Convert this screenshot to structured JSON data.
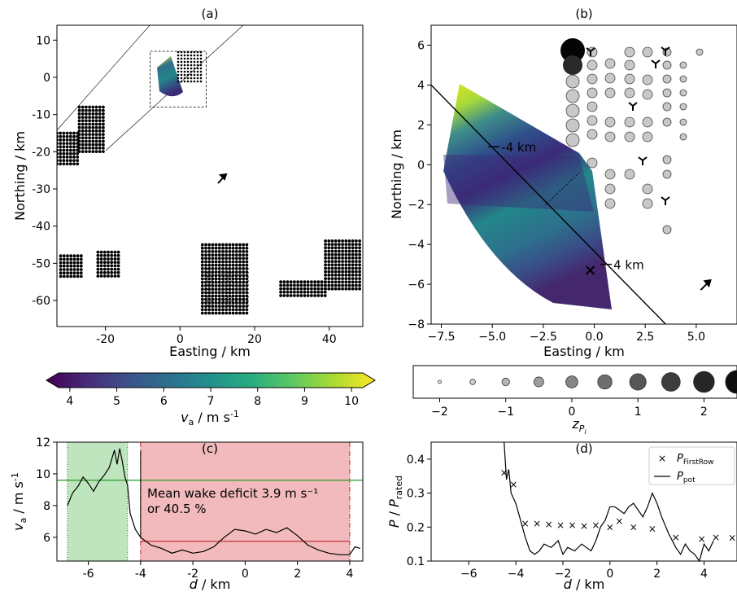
{
  "chart_data": [
    {
      "panel": "(a)",
      "type": "scatter",
      "title": "(a)",
      "xlabel": "Easting / km",
      "ylabel": "Northing / km",
      "xlim": [
        -33,
        49
      ],
      "ylim": [
        -67,
        14
      ],
      "xticks": [
        -20,
        0,
        20,
        40
      ],
      "yticks": [
        10,
        0,
        -10,
        -20,
        -30,
        -40,
        -50,
        -60
      ],
      "xtick_labels": [
        "-20",
        "0",
        "20",
        "40"
      ],
      "ytick_labels": [
        "10",
        "0",
        "-10",
        "-20",
        "-30",
        "-40",
        "-50",
        "-60"
      ],
      "wind_farms": [
        {
          "x_range": [
            -33,
            -27
          ],
          "y_range": [
            -24,
            -15
          ]
        },
        {
          "x_range": [
            -27,
            -20
          ],
          "y_range": [
            -20,
            -8
          ]
        },
        {
          "x_range": [
            -32,
            -26
          ],
          "y_range": [
            -54,
            -48
          ]
        },
        {
          "x_range": [
            -22,
            -16
          ],
          "y_range": [
            -54,
            -47
          ]
        },
        {
          "x_range": [
            6,
            18
          ],
          "y_range": [
            -64,
            -45
          ]
        },
        {
          "x_range": [
            27,
            39
          ],
          "y_range": [
            -59,
            -55
          ]
        },
        {
          "x_range": [
            39,
            49
          ],
          "y_range": [
            -57,
            -44
          ]
        }
      ],
      "zoom_box": {
        "x_range": [
          -8,
          7
        ],
        "y_range": [
          -8,
          7
        ]
      },
      "grid": false
    },
    {
      "panel": "(b)",
      "type": "heatmap",
      "title": "(b)",
      "xlabel": "Easting / km",
      "ylabel": "Northing / km",
      "xlim": [
        -8,
        7
      ],
      "ylim": [
        -8,
        7
      ],
      "xticks": [
        -7.5,
        -5,
        -2.5,
        0,
        2.5,
        5
      ],
      "yticks": [
        6,
        4,
        2,
        0,
        -2,
        -4,
        -6,
        -8
      ],
      "xtick_labels": [
        "−7.5",
        "−5.0",
        "−2.5",
        "0.0",
        "2.5",
        "5.0"
      ],
      "ytick_labels": [
        "6",
        "4",
        "2",
        "0",
        "−2",
        "−4",
        "−6",
        "−8"
      ],
      "transect": {
        "start": [
          -8,
          4
        ],
        "end": [
          3.5,
          -8
        ]
      },
      "transect_labels": [
        {
          "text": "-4 km",
          "x": -4.8,
          "y": 0.9
        },
        {
          "text": "4 km",
          "x": 0.7,
          "y": -5.0
        }
      ],
      "turbine_marker": {
        "x": -0.2,
        "y": -5.3
      },
      "wind_arrow": {
        "x": 5.5,
        "y": -6.0
      }
    },
    {
      "panel": "colorbar",
      "type": "heatmap",
      "xlabel": "v_a / m s⁻¹",
      "xlim": [
        3.5,
        10.5
      ],
      "ticks": [
        4,
        5,
        6,
        7,
        8,
        9,
        10
      ],
      "tick_labels": [
        "4",
        "5",
        "6",
        "7",
        "8",
        "9",
        "10"
      ],
      "colormap": [
        "#440154",
        "#3b528b",
        "#21918c",
        "#5ec962",
        "#fde725"
      ]
    },
    {
      "panel": "size-legend",
      "type": "scatter",
      "xlabel": "z_Pi",
      "xlim": [
        -2.4,
        2.5
      ],
      "values": [
        -2,
        -1.5,
        -1,
        -0.5,
        0,
        0.5,
        1,
        1.5,
        2,
        2.5
      ],
      "ticks": [
        -2,
        -1,
        0,
        1,
        2
      ],
      "tick_labels": [
        "−2",
        "−1",
        "0",
        "1",
        "2"
      ]
    },
    {
      "panel": "(c)",
      "type": "line",
      "title": "(c)",
      "xlabel": "d / km",
      "ylabel": "v_a / m s⁻¹",
      "xlim": [
        -7.2,
        4.5
      ],
      "ylim": [
        4.5,
        12
      ],
      "xticks": [
        -6,
        -4,
        -2,
        0,
        2,
        4
      ],
      "yticks": [
        6,
        8,
        10,
        12
      ],
      "xtick_labels": [
        "-6",
        "-4",
        "-2",
        "0",
        "2",
        "4"
      ],
      "ytick_labels": [
        "6",
        "8",
        "10",
        "12"
      ],
      "free_stream_level": 9.6,
      "wake_level": 5.75,
      "free_stream_span": [
        -6.8,
        -4.5
      ],
      "wake_span": [
        -4.0,
        4.0
      ],
      "annotation": [
        "Mean wake deficit 3.9 m s⁻¹",
        "or 40.5 %"
      ],
      "series": [
        {
          "x": [
            -6.8,
            -6.6,
            -6.4,
            -6.2,
            -6.0,
            -5.8,
            -5.6,
            -5.4,
            -5.2,
            -5.0,
            -4.9,
            -4.8,
            -4.7,
            -4.6,
            -4.5,
            -4.4,
            -4.2,
            -4.0,
            -3.6,
            -3.2,
            -2.8,
            -2.4,
            -2.0,
            -1.6,
            -1.2,
            -0.8,
            -0.4,
            0.0,
            0.4,
            0.8,
            1.2,
            1.6,
            2.0,
            2.4,
            2.8,
            3.2,
            3.6,
            4.0,
            4.2,
            4.4
          ],
          "values": [
            8.0,
            8.8,
            9.2,
            9.8,
            9.4,
            8.9,
            9.5,
            9.9,
            10.4,
            11.5,
            10.6,
            11.6,
            10.8,
            9.8,
            9.3,
            7.5,
            6.5,
            6.0,
            5.5,
            5.3,
            5.0,
            5.2,
            5.0,
            5.1,
            5.4,
            6.0,
            6.5,
            6.4,
            6.2,
            6.5,
            6.3,
            6.6,
            6.1,
            5.5,
            5.2,
            5.0,
            4.9,
            4.9,
            5.4,
            5.3
          ]
        }
      ]
    },
    {
      "panel": "(d)",
      "type": "line",
      "title": "(d)",
      "xlabel": "d / km",
      "ylabel": "P / P_rated",
      "xlim": [
        -7.6,
        5.4
      ],
      "ylim": [
        0.1,
        0.45
      ],
      "xticks": [
        -6,
        -4,
        -2,
        0,
        2,
        4
      ],
      "yticks": [
        0.1,
        0.2,
        0.3,
        0.4
      ],
      "xtick_labels": [
        "−6",
        "−4",
        "−2",
        "0",
        "2",
        "4"
      ],
      "ytick_labels": [
        "0.1",
        "0.2",
        "0.3",
        "0.4"
      ],
      "legend_position": "top-right",
      "series": [
        {
          "name": "P_FirstRow",
          "x": [
            -4.5,
            -4.1,
            -3.6,
            -3.1,
            -2.6,
            -2.1,
            -1.6,
            -1.1,
            -0.6,
            0.0,
            0.4,
            1.0,
            1.8,
            2.8,
            3.9,
            4.5,
            5.2
          ],
          "values": [
            0.36,
            0.325,
            0.21,
            0.21,
            0.208,
            0.205,
            0.205,
            0.203,
            0.205,
            0.2,
            0.218,
            0.2,
            0.195,
            0.17,
            0.165,
            0.17,
            0.168
          ]
        },
        {
          "name": "P_pot",
          "x": [
            -4.5,
            -4.4,
            -4.3,
            -4.2,
            -4.0,
            -3.8,
            -3.6,
            -3.4,
            -3.2,
            -3.0,
            -2.8,
            -2.5,
            -2.2,
            -2.0,
            -1.8,
            -1.5,
            -1.2,
            -1.0,
            -0.8,
            -0.6,
            -0.4,
            -0.2,
            0.0,
            0.2,
            0.4,
            0.6,
            0.8,
            1.0,
            1.2,
            1.4,
            1.6,
            1.8,
            2.0,
            2.2,
            2.5,
            2.8,
            3.0,
            3.2,
            3.4,
            3.6,
            3.8,
            4.0,
            4.2,
            4.4
          ],
          "values": [
            0.46,
            0.34,
            0.37,
            0.3,
            0.27,
            0.22,
            0.17,
            0.13,
            0.12,
            0.13,
            0.15,
            0.14,
            0.16,
            0.12,
            0.14,
            0.13,
            0.15,
            0.14,
            0.13,
            0.16,
            0.2,
            0.22,
            0.26,
            0.26,
            0.25,
            0.24,
            0.26,
            0.27,
            0.25,
            0.23,
            0.26,
            0.3,
            0.27,
            0.23,
            0.18,
            0.14,
            0.12,
            0.15,
            0.13,
            0.12,
            0.1,
            0.15,
            0.13,
            0.16
          ]
        }
      ]
    }
  ]
}
